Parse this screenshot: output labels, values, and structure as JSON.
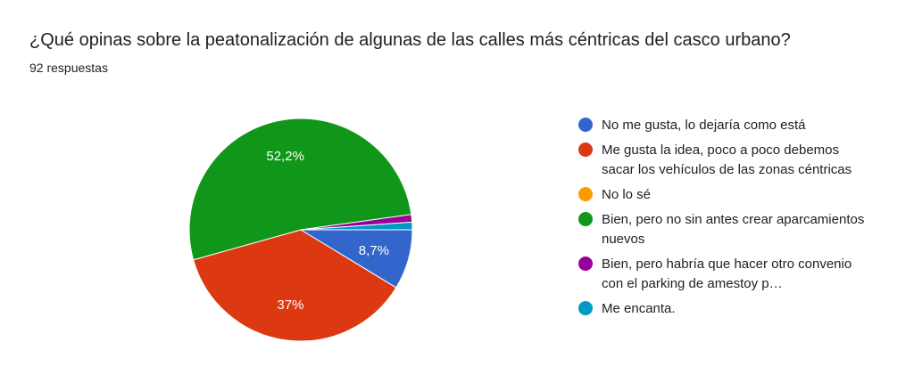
{
  "title": "¿Qué opinas sobre la peatonalización de algunas de las calles más céntricas del casco urbano?",
  "subtitle": "92 respuestas",
  "chart_data": {
    "type": "pie",
    "categories": [
      "No me gusta, lo dejaría como está",
      "Me gusta la idea, poco a poco debemos sacar los vehículos de las zonas céntricas",
      "No lo sé",
      "Bien, pero no sin antes crear aparcamientos nuevos",
      "Bien, pero habría que hacer otro convenio con el parking de amestoy p…",
      "Me encanta."
    ],
    "values": [
      8.7,
      37.0,
      0.0,
      52.2,
      1.1,
      1.1
    ],
    "labels": [
      "8,7%",
      "37%",
      "",
      "52,2%",
      "",
      ""
    ],
    "colors": [
      "#3366cc",
      "#dc3912",
      "#ff9900",
      "#109618",
      "#990099",
      "#0099c6"
    ],
    "legend_position": "right"
  }
}
